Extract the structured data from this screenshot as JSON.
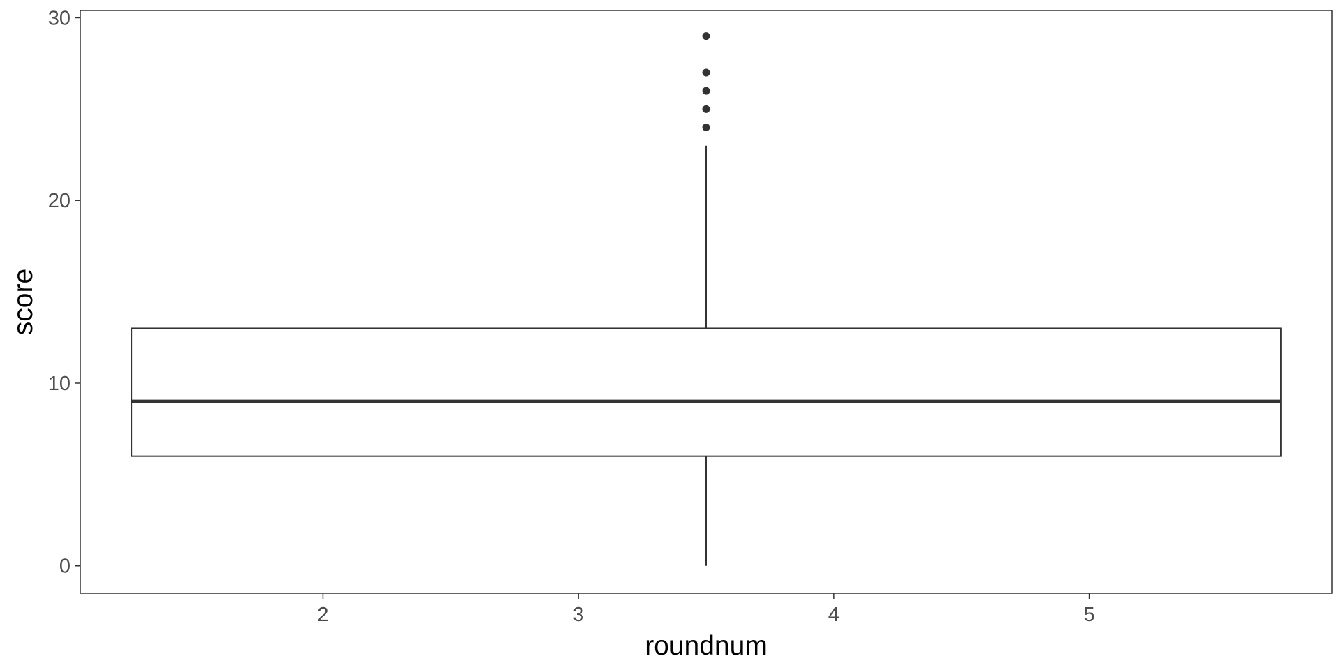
{
  "chart_data": {
    "type": "boxplot",
    "xlabel": "roundnum",
    "ylabel": "score",
    "xlim": [
      1.05,
      5.95
    ],
    "ylim": [
      -1.5,
      30.4
    ],
    "x_ticks": [
      2,
      3,
      4,
      5
    ],
    "y_ticks": [
      0,
      10,
      20,
      30
    ],
    "grid": false,
    "box": {
      "x_left": 1.25,
      "x_right": 5.75,
      "x_center": 3.5,
      "lower_whisker": 0,
      "q1": 6,
      "median": 9,
      "q3": 13,
      "upper_whisker": 23,
      "outliers": [
        24,
        25,
        26,
        27,
        29
      ]
    },
    "colors": {
      "box_stroke": "#333333",
      "outlier_fill": "#333333",
      "panel_border": "#333333",
      "tick_label": "#4d4d4d"
    }
  }
}
